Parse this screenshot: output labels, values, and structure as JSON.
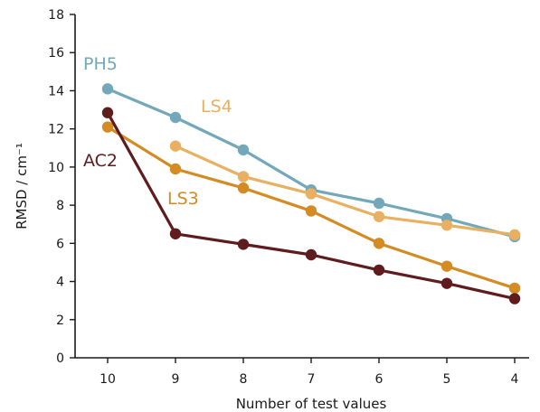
{
  "chart_data": {
    "type": "line",
    "xlabel": "Number of test values",
    "ylabel": "RMSD / cm⁻¹",
    "x": [
      10,
      9,
      8,
      7,
      6,
      5,
      4
    ],
    "ylim": [
      0,
      18
    ],
    "yticks": [
      0,
      2,
      4,
      6,
      8,
      10,
      12,
      14,
      16,
      18
    ],
    "grid": false,
    "legend": "none",
    "series": [
      {
        "name": "PH5",
        "color": "#72a8ba",
        "x": [
          10,
          9,
          8,
          7,
          6,
          5,
          4
        ],
        "values": [
          14.1,
          12.6,
          10.9,
          8.8,
          8.1,
          7.3,
          6.35
        ]
      },
      {
        "name": "LS4",
        "color": "#e8b060",
        "x": [
          9,
          8,
          7,
          6,
          5,
          4
        ],
        "values": [
          11.1,
          9.5,
          8.6,
          7.4,
          6.95,
          6.45
        ]
      },
      {
        "name": "LS3",
        "color": "#d48b24",
        "x": [
          10,
          9,
          8,
          7,
          6,
          5,
          4
        ],
        "values": [
          12.1,
          9.9,
          8.9,
          7.7,
          6.0,
          4.8,
          3.65
        ]
      },
      {
        "name": "AC2",
        "color": "#5e1c1c",
        "x": [
          10,
          9,
          8,
          7,
          6,
          5,
          4
        ],
        "values": [
          12.85,
          6.5,
          5.95,
          5.4,
          4.6,
          3.9,
          3.1
        ]
      }
    ]
  }
}
